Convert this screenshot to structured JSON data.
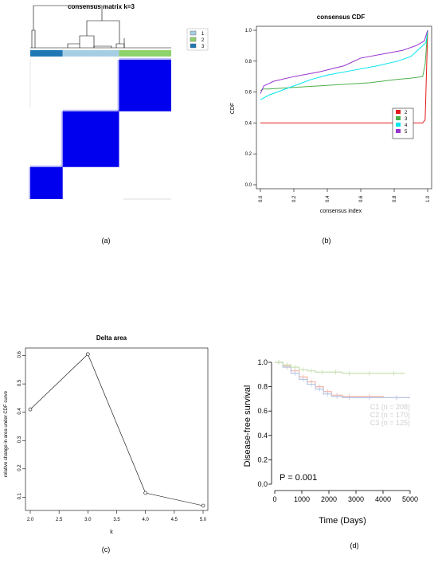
{
  "captions": {
    "a": "(a)",
    "b": "(b)",
    "c": "(c)",
    "d": "(d)"
  },
  "colors": {
    "cluster1": "#a6cee3",
    "cluster2": "#8ed36a",
    "cluster3": "#1f78b4",
    "matrix_high": "#0000ee",
    "cdf_k2": "#e41a1c",
    "cdf_k3": "#4daf4a",
    "cdf_k4": "#00e5ee",
    "cdf_k5": "#9932cc",
    "survival_c1": "#f4b6a6",
    "survival_c2": "#b8c7e6",
    "survival_c3": "#c8e0b4"
  },
  "chart_data": [
    {
      "type": "heatmap",
      "title": "consensus matrix k=3",
      "legend": [
        "1",
        "2",
        "3"
      ],
      "legend_position": "top-right",
      "cluster_fractions": {
        "3": 0.23,
        "1": 0.4,
        "2": 0.37
      },
      "blocks": [
        {
          "cluster": "3",
          "consensus": 1.0
        },
        {
          "cluster": "1",
          "consensus": 1.0
        },
        {
          "cluster": "2",
          "consensus": 1.0
        }
      ]
    },
    {
      "type": "line",
      "title": "consensus CDF",
      "xlabel": "consensus index",
      "ylabel": "CDF",
      "xlim": [
        0,
        1
      ],
      "ylim": [
        0,
        1
      ],
      "xticks": [
        "0.0",
        "0.2",
        "0.4",
        "0.6",
        "0.8",
        "1.0"
      ],
      "yticks": [
        "0.0",
        "0.2",
        "0.4",
        "0.6",
        "0.8",
        "1.0"
      ],
      "legend_position": "right",
      "series": [
        {
          "name": "2",
          "x": [
            0,
            0.02,
            0.5,
            0.97,
            0.985,
            0.995,
            1.0
          ],
          "y": [
            0.4,
            0.4,
            0.4,
            0.4,
            0.42,
            0.8,
            1.0
          ]
        },
        {
          "name": "3",
          "x": [
            0,
            0.02,
            0.05,
            0.2,
            0.35,
            0.5,
            0.65,
            0.8,
            0.9,
            0.97,
            0.985,
            1.0
          ],
          "y": [
            0.61,
            0.62,
            0.62,
            0.63,
            0.64,
            0.65,
            0.66,
            0.68,
            0.69,
            0.7,
            0.78,
            1.0
          ]
        },
        {
          "name": "4",
          "x": [
            0,
            0.05,
            0.15,
            0.3,
            0.4,
            0.55,
            0.7,
            0.82,
            0.9,
            0.95,
            0.99,
            1.0
          ],
          "y": [
            0.55,
            0.58,
            0.62,
            0.68,
            0.71,
            0.74,
            0.77,
            0.8,
            0.83,
            0.88,
            0.92,
            1.0
          ]
        },
        {
          "name": "5",
          "x": [
            0,
            0.02,
            0.08,
            0.2,
            0.35,
            0.5,
            0.6,
            0.75,
            0.85,
            0.93,
            0.98,
            1.0
          ],
          "y": [
            0.59,
            0.64,
            0.67,
            0.7,
            0.73,
            0.77,
            0.82,
            0.85,
            0.87,
            0.9,
            0.93,
            1.0
          ]
        }
      ]
    },
    {
      "type": "line",
      "title": "Delta area",
      "xlabel": "k",
      "ylabel": "relative change in area under CDF curve",
      "xlim": [
        2,
        5
      ],
      "ylim": [
        0.07,
        0.61
      ],
      "xticks": [
        "2.0",
        "2.5",
        "3.0",
        "3.5",
        "4.0",
        "4.5",
        "5.0"
      ],
      "yticks": [
        "0.1",
        "0.2",
        "0.3",
        "0.4",
        "0.5",
        "0.6"
      ],
      "x": [
        2,
        3,
        4,
        5
      ],
      "y": [
        0.41,
        0.605,
        0.115,
        0.07
      ]
    },
    {
      "type": "line",
      "xlabel": "Time (Days)",
      "ylabel": "Disease-free survival",
      "xlim": [
        0,
        5000
      ],
      "ylim": [
        0,
        1
      ],
      "xticks": [
        "0",
        "1000",
        "2000",
        "3000",
        "4000",
        "5000"
      ],
      "yticks": [
        "0.0",
        "0.2",
        "0.4",
        "0.6",
        "0.8",
        "1.0"
      ],
      "annotation": "P = 0.001",
      "series": [
        {
          "name": "C1 (n = 208)",
          "x": [
            0,
            300,
            600,
            900,
            1200,
            1500,
            1800,
            2100,
            2500,
            3000,
            4000,
            5000
          ],
          "y": [
            1.0,
            0.97,
            0.93,
            0.88,
            0.84,
            0.8,
            0.76,
            0.73,
            0.72,
            0.72,
            0.71,
            0.71
          ]
        },
        {
          "name": "C2 (n = 170)",
          "x": [
            0,
            300,
            600,
            900,
            1200,
            1500,
            1800,
            2100,
            2500,
            3000,
            4000,
            5000
          ],
          "y": [
            1.0,
            0.96,
            0.91,
            0.86,
            0.82,
            0.78,
            0.74,
            0.72,
            0.71,
            0.71,
            0.71,
            0.71
          ]
        },
        {
          "name": "C3 (n = 125)",
          "x": [
            0,
            300,
            600,
            900,
            1200,
            1500,
            2000,
            2500,
            3000,
            4000,
            4800
          ],
          "y": [
            1.0,
            0.98,
            0.96,
            0.94,
            0.93,
            0.92,
            0.92,
            0.91,
            0.91,
            0.91,
            0.91
          ]
        }
      ]
    }
  ]
}
